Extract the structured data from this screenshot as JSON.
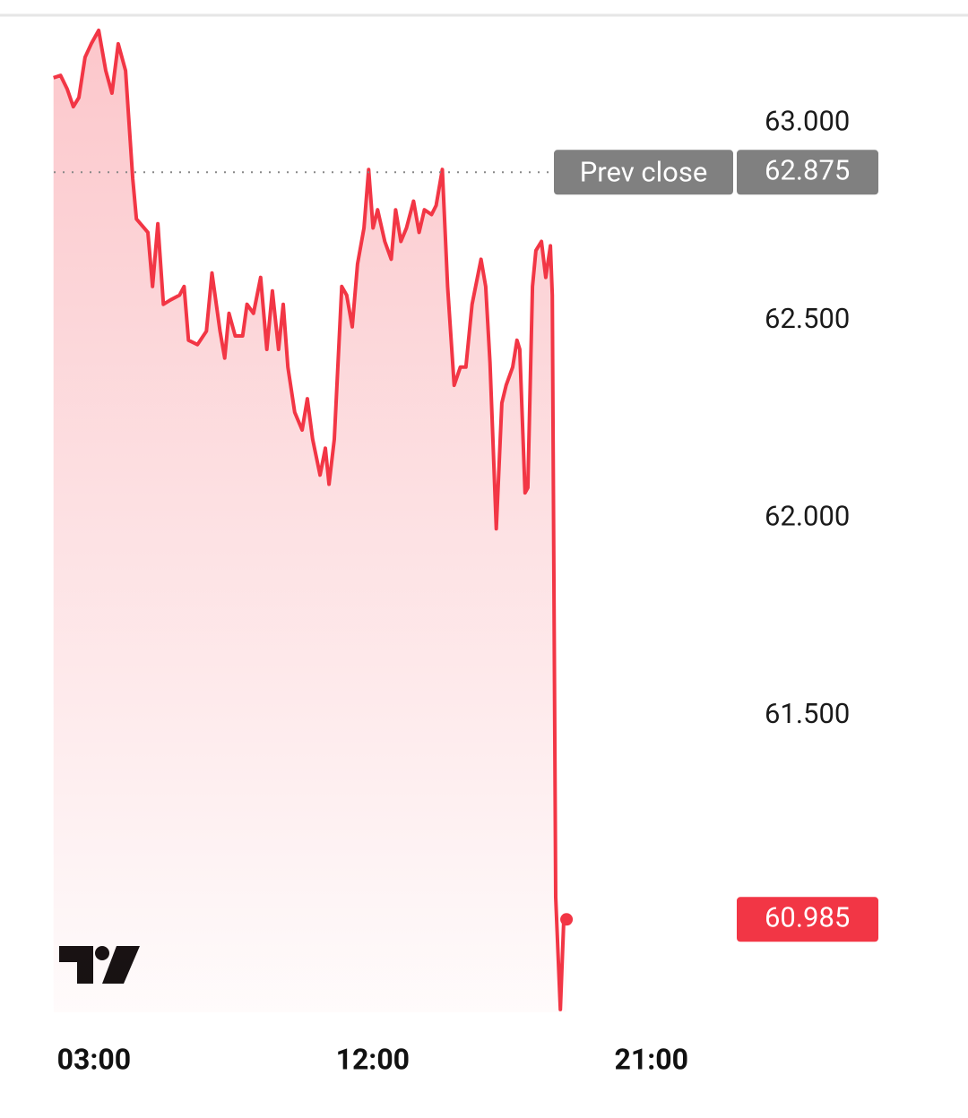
{
  "chart_data": {
    "type": "area",
    "x": [
      1.69,
      1.92,
      2.13,
      2.33,
      2.51,
      2.71,
      2.91,
      3.15,
      3.38,
      3.58,
      3.78,
      4.02,
      4.25,
      4.37,
      4.74,
      4.89,
      5.06,
      5.24,
      5.47,
      5.76,
      5.91,
      6.05,
      6.34,
      6.63,
      6.81,
      7.07,
      7.22,
      7.36,
      7.56,
      7.8,
      7.94,
      8.15,
      8.38,
      8.58,
      8.76,
      8.96,
      9.11,
      9.26,
      9.48,
      9.72,
      9.89,
      10.06,
      10.3,
      10.47,
      10.59,
      10.76,
      11.0,
      11.16,
      11.34,
      11.51,
      11.72,
      11.87,
      12.01,
      12.16,
      12.39,
      12.6,
      12.74,
      12.91,
      13.09,
      13.32,
      13.5,
      13.67,
      13.9,
      14.05,
      14.25,
      14.42,
      14.63,
      14.83,
      15.01,
      15.21,
      15.5,
      15.65,
      15.79,
      15.99,
      16.17,
      16.31,
      16.52,
      16.66,
      16.75,
      16.92,
      17.01,
      17.16,
      17.27,
      17.45,
      17.59,
      17.74,
      17.8,
      17.91,
      18.06,
      18.17,
      18.26
    ],
    "series": [
      {
        "color": "#f23645",
        "values": [
          63.114,
          63.12,
          63.086,
          63.041,
          63.064,
          63.166,
          63.2,
          63.234,
          63.132,
          63.075,
          63.2,
          63.132,
          62.859,
          62.757,
          62.723,
          62.586,
          62.745,
          62.541,
          62.552,
          62.564,
          62.586,
          62.45,
          62.439,
          62.473,
          62.62,
          62.473,
          62.405,
          62.518,
          62.461,
          62.461,
          62.541,
          62.518,
          62.609,
          62.427,
          62.575,
          62.427,
          62.541,
          62.382,
          62.268,
          62.223,
          62.302,
          62.2,
          62.109,
          62.177,
          62.086,
          62.2,
          62.586,
          62.564,
          62.484,
          62.643,
          62.734,
          62.882,
          62.734,
          62.78,
          62.7,
          62.655,
          62.78,
          62.7,
          62.734,
          62.802,
          62.723,
          62.78,
          62.768,
          62.791,
          62.882,
          62.586,
          62.336,
          62.382,
          62.382,
          62.541,
          62.655,
          62.586,
          62.393,
          61.973,
          62.291,
          62.336,
          62.382,
          62.45,
          62.427,
          62.064,
          62.077,
          62.586,
          62.677,
          62.7,
          62.609,
          62.689,
          62.564,
          61.041,
          60.757,
          60.984,
          60.985
        ]
      }
    ],
    "xlim": [
      1.7,
      23.7
    ],
    "xticks": [
      {
        "value": 3,
        "label": "03:00"
      },
      {
        "value": 12,
        "label": "12:00"
      },
      {
        "value": 21,
        "label": "21:00"
      }
    ],
    "ylim": [
      60.75,
      63.27
    ],
    "yticks": [
      {
        "value": 61.5,
        "label": "61.500"
      },
      {
        "value": 62,
        "label": "62.000"
      },
      {
        "value": 62.5,
        "label": "62.500"
      },
      {
        "value": 63,
        "label": "63.000"
      }
    ],
    "prev_close_label": "Prev close",
    "prev_close": 62.875,
    "last_value": 60.985
  }
}
